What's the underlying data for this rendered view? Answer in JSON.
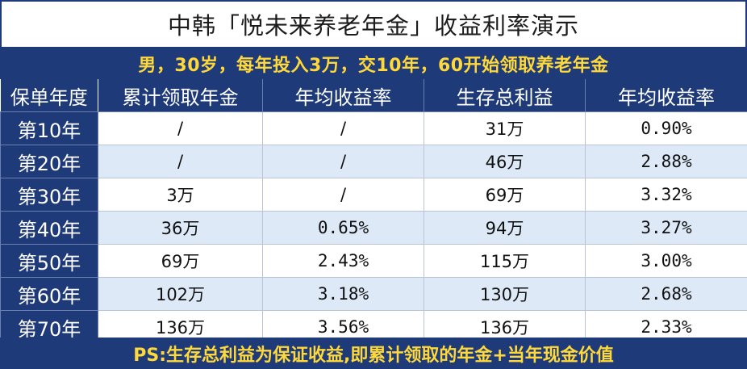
{
  "title": "中韩「悦未来养老年金」收益利率演示",
  "subtitle": "男，30岁，每年投入3万，交10年，60开始领取养老年金",
  "columns": [
    "保单年度",
    "累计领取年金",
    "年均收益率",
    "生存总利益",
    "年均收益率"
  ],
  "rows": [
    [
      "第10年",
      "/",
      "/",
      "31万",
      "0.90%"
    ],
    [
      "第20年",
      "/",
      "/",
      "46万",
      "2.88%"
    ],
    [
      "第30年",
      "3万",
      "/",
      "69万",
      "3.32%"
    ],
    [
      "第40年",
      "36万",
      "0.65%",
      "94万",
      "3.27%"
    ],
    [
      "第50年",
      "69万",
      "2.43%",
      "115万",
      "3.00%"
    ],
    [
      "第60年",
      "102万",
      "3.18%",
      "130万",
      "2.68%"
    ],
    [
      "第70年",
      "136万",
      "3.56%",
      "136万",
      "2.33%"
    ]
  ],
  "footer": "PS:生存总利益为保证收益,即累计领取的年金+当年现金价值",
  "colors": {
    "header_bg": "#1f3a78",
    "highlight_text": "#ffd83a",
    "alt_row_bg": "#dde9f7"
  }
}
